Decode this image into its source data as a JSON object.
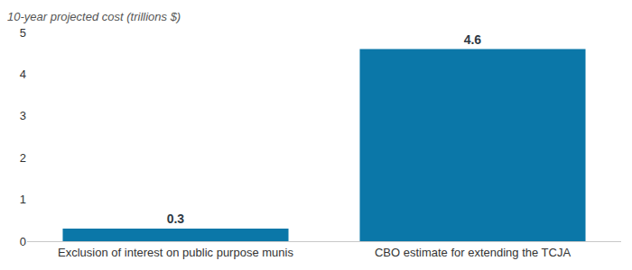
{
  "chart_data": {
    "type": "bar",
    "y_label": "10-year projected cost (trillions $)",
    "categories": [
      "Exclusion of interest on public purpose munis",
      "CBO estimate for extending the TCJA"
    ],
    "values": [
      0.3,
      4.6
    ],
    "color": "#0b77a8",
    "ylim": [
      0,
      5
    ],
    "yticks": [
      0,
      1,
      2,
      3,
      4,
      5
    ],
    "grid": false,
    "data_labels": true
  }
}
